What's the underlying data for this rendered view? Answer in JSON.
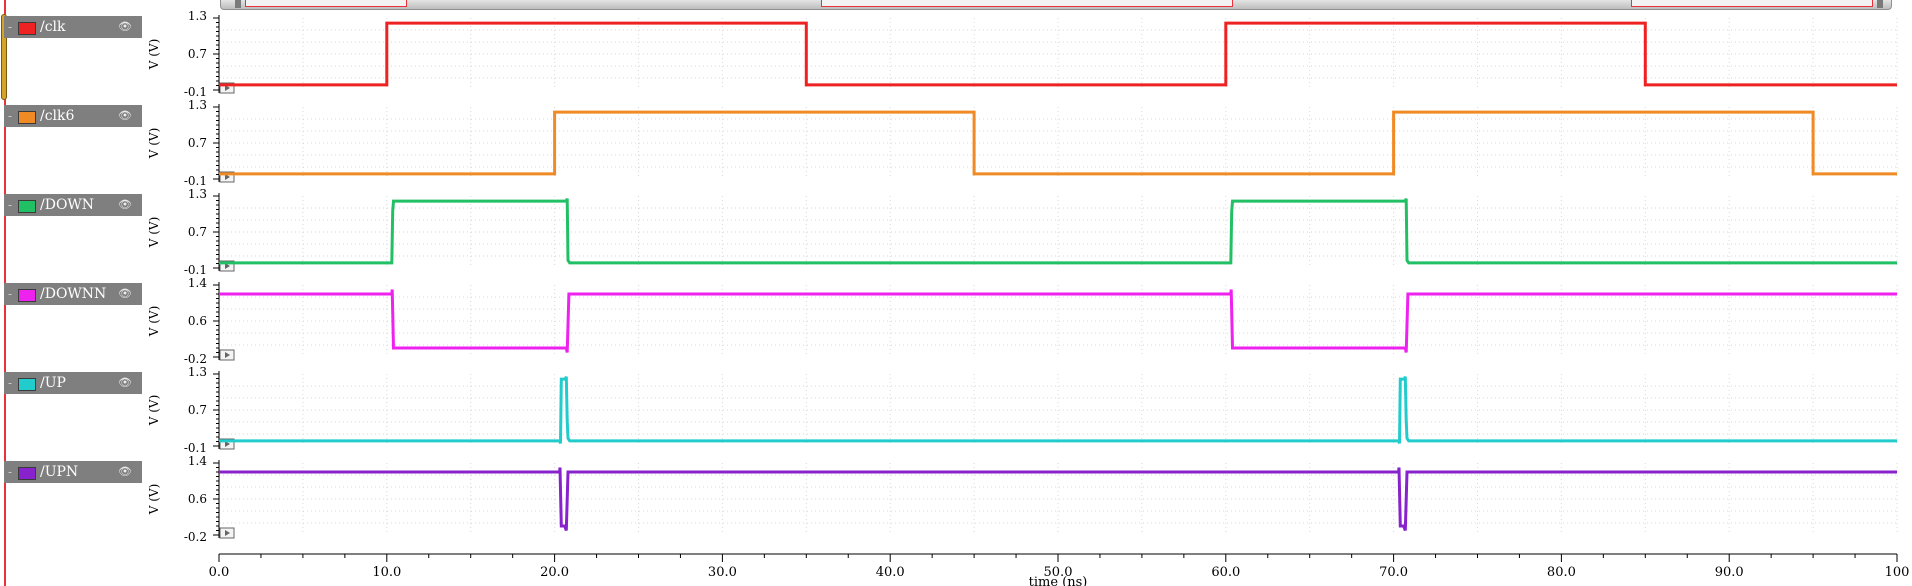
{
  "chart_data": {
    "type": "line",
    "x_axis": {
      "label": "time (ns)",
      "lim": [
        0,
        100
      ],
      "ticks": [
        "0.0",
        "10.0",
        "20.0",
        "30.0",
        "40.0",
        "50.0",
        "60.0",
        "70.0",
        "80.0",
        "90.0",
        "100"
      ]
    },
    "grid": true,
    "series": [
      {
        "name": "/clk",
        "color": "#ee2222",
        "ylabel": "V (V)",
        "ylim": [
          -0.1,
          1.3
        ],
        "yticks": [
          "1.3",
          "0.7",
          "-0.1"
        ],
        "points": [
          [
            0,
            0
          ],
          [
            10,
            0
          ],
          [
            10,
            1.2
          ],
          [
            35,
            1.2
          ],
          [
            35,
            0
          ],
          [
            60,
            0
          ],
          [
            60,
            1.2
          ],
          [
            85,
            1.2
          ],
          [
            85,
            0
          ],
          [
            100,
            0
          ]
        ]
      },
      {
        "name": "/clk6",
        "color": "#f08a24",
        "ylabel": "V (V)",
        "ylim": [
          -0.1,
          1.3
        ],
        "yticks": [
          "1.3",
          "0.7",
          "-0.1"
        ],
        "points": [
          [
            0,
            0
          ],
          [
            20,
            0
          ],
          [
            20,
            1.2
          ],
          [
            45,
            1.2
          ],
          [
            45,
            0
          ],
          [
            70,
            0
          ],
          [
            70,
            1.2
          ],
          [
            95,
            1.2
          ],
          [
            95,
            0
          ],
          [
            100,
            0
          ]
        ]
      },
      {
        "name": "/DOWN",
        "color": "#22c065",
        "ylabel": "V (V)",
        "ylim": [
          -0.1,
          1.3
        ],
        "yticks": [
          "1.3",
          "0.7",
          "-0.1"
        ],
        "points": [
          [
            0,
            0
          ],
          [
            10.3,
            0
          ],
          [
            10.35,
            1.0
          ],
          [
            10.4,
            1.2
          ],
          [
            20.7,
            1.2
          ],
          [
            20.75,
            1.25
          ],
          [
            20.8,
            0.05
          ],
          [
            20.9,
            0
          ],
          [
            60.3,
            0
          ],
          [
            60.35,
            1.0
          ],
          [
            60.4,
            1.2
          ],
          [
            70.7,
            1.2
          ],
          [
            70.75,
            1.25
          ],
          [
            70.8,
            0.05
          ],
          [
            70.9,
            0
          ],
          [
            100,
            0
          ]
        ]
      },
      {
        "name": "/DOWNN",
        "color": "#ee22ee",
        "ylabel": "V (V)",
        "ylim": [
          -0.2,
          1.4
        ],
        "yticks": [
          "1.4",
          "0.6",
          "-0.2"
        ],
        "points": [
          [
            0,
            1.2
          ],
          [
            10.3,
            1.2
          ],
          [
            10.32,
            1.3
          ],
          [
            10.4,
            0.0
          ],
          [
            20.7,
            0.0
          ],
          [
            20.75,
            -0.1
          ],
          [
            20.85,
            1.2
          ],
          [
            60.3,
            1.2
          ],
          [
            60.32,
            1.3
          ],
          [
            60.4,
            0.0
          ],
          [
            70.7,
            0.0
          ],
          [
            70.75,
            -0.1
          ],
          [
            70.85,
            1.2
          ],
          [
            100,
            1.2
          ]
        ]
      },
      {
        "name": "/UP",
        "color": "#22cccc",
        "ylabel": "V (V)",
        "ylim": [
          -0.1,
          1.3
        ],
        "yticks": [
          "1.3",
          "0.7",
          "-0.1"
        ],
        "points": [
          [
            0,
            0
          ],
          [
            20.3,
            0
          ],
          [
            20.35,
            -0.05
          ],
          [
            20.4,
            1.2
          ],
          [
            20.65,
            1.2
          ],
          [
            20.7,
            1.25
          ],
          [
            20.75,
            0.4
          ],
          [
            20.8,
            0.05
          ],
          [
            20.9,
            0
          ],
          [
            70.3,
            0
          ],
          [
            70.35,
            -0.05
          ],
          [
            70.4,
            1.2
          ],
          [
            70.65,
            1.2
          ],
          [
            70.7,
            1.25
          ],
          [
            70.75,
            0.4
          ],
          [
            70.8,
            0.05
          ],
          [
            70.9,
            0
          ],
          [
            100,
            0
          ]
        ]
      },
      {
        "name": "/UPN",
        "color": "#8822cc",
        "ylabel": "V (V)",
        "ylim": [
          -0.2,
          1.4
        ],
        "yticks": [
          "1.4",
          "0.6",
          "-0.2"
        ],
        "points": [
          [
            0,
            1.2
          ],
          [
            20.3,
            1.2
          ],
          [
            20.32,
            1.3
          ],
          [
            20.4,
            0.0
          ],
          [
            20.6,
            0.0
          ],
          [
            20.7,
            -0.1
          ],
          [
            20.8,
            1.2
          ],
          [
            70.3,
            1.2
          ],
          [
            70.32,
            1.3
          ],
          [
            70.4,
            0.0
          ],
          [
            70.6,
            0.0
          ],
          [
            70.7,
            -0.1
          ],
          [
            70.8,
            1.2
          ],
          [
            100,
            1.2
          ]
        ]
      }
    ]
  }
}
